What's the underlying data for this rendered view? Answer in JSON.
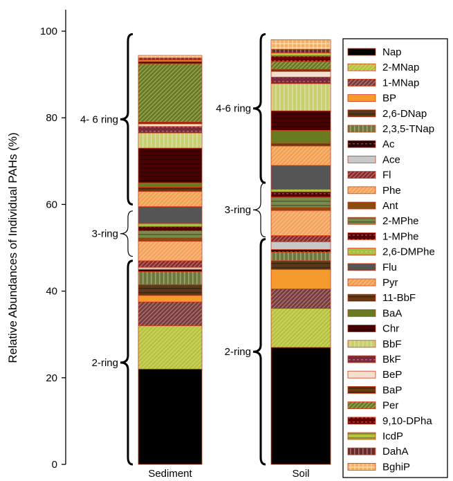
{
  "chart_data": {
    "type": "stacked-bar",
    "ylabel": "Relative Abundances of Individual PAHs (%)",
    "ylim": [
      0,
      100
    ],
    "yticks": [
      0,
      20,
      40,
      60,
      80,
      100
    ],
    "categories": [
      "Sediment",
      "Soil"
    ],
    "series": [
      {
        "name": "Nap",
        "color": "#000000",
        "pattern": "solid",
        "values": [
          22,
          27
        ]
      },
      {
        "name": "2-MNap",
        "color": "#b5c23a",
        "pattern": "diag",
        "values": [
          10,
          9
        ]
      },
      {
        "name": "1-MNap",
        "color": "#7a3b3b",
        "pattern": "diag",
        "values": [
          5.5,
          4.5
        ]
      },
      {
        "name": "BP",
        "color": "#f59a2c",
        "pattern": "solid",
        "values": [
          1.5,
          4.5
        ]
      },
      {
        "name": "2,6-DNap",
        "color": "#5a3a1a",
        "pattern": "hstripe",
        "values": [
          2.5,
          2
        ]
      },
      {
        "name": "2,3,5-TNap",
        "color": "#6f7a3a",
        "pattern": "vstripe",
        "values": [
          3,
          2
        ]
      },
      {
        "name": "Ac",
        "color": "#2a0000",
        "pattern": "dash",
        "values": [
          0.5,
          0.6
        ]
      },
      {
        "name": "Ace",
        "color": "#c8c8c8",
        "pattern": "solid",
        "values": [
          0.5,
          1.8
        ]
      },
      {
        "name": "Fl",
        "color": "#8a2a2a",
        "pattern": "diag",
        "values": [
          1.5,
          1.4
        ]
      },
      {
        "name": "Phe",
        "color": "#f5a35c",
        "pattern": "diag",
        "values": [
          4.5,
          5.8
        ]
      },
      {
        "name": "Ant",
        "color": "#8a4a10",
        "pattern": "solid",
        "values": [
          0.8,
          0.7
        ]
      },
      {
        "name": "2-MPhe",
        "color": "#7a8a4a",
        "pattern": "hstripe",
        "values": [
          1.6,
          2.4
        ]
      },
      {
        "name": "1-MPhe",
        "color": "#550000",
        "pattern": "dash",
        "values": [
          1,
          1.2
        ]
      },
      {
        "name": "2,6-DMPhe",
        "color": "#a8c040",
        "pattern": "dash",
        "values": [
          0.7,
          0.6
        ]
      },
      {
        "name": "Flu",
        "color": "#555555",
        "pattern": "solid",
        "values": [
          3.9,
          5.5
        ]
      },
      {
        "name": "Pyr",
        "color": "#f0a050",
        "pattern": "diag",
        "values": [
          3.5,
          4.5
        ]
      },
      {
        "name": "11-BbF",
        "color": "#6a3a10",
        "pattern": "hstripe",
        "values": [
          1,
          0.6
        ]
      },
      {
        "name": "BaA",
        "color": "#6a7a20",
        "pattern": "solid",
        "values": [
          1,
          3
        ]
      },
      {
        "name": "Chr",
        "color": "#4a0000",
        "pattern": "hstripe",
        "values": [
          8,
          4.5
        ]
      },
      {
        "name": "BbF",
        "color": "#c8d070",
        "pattern": "vstripe",
        "values": [
          3.5,
          6.3
        ]
      },
      {
        "name": "BkF",
        "color": "#7a2a3a",
        "pattern": "dash",
        "values": [
          1.5,
          1.5
        ]
      },
      {
        "name": "BeP",
        "color": "#f5e0d0",
        "pattern": "solid",
        "values": [
          0.6,
          1.3
        ]
      },
      {
        "name": "BaP",
        "color": "#6a3a10",
        "pattern": "hstripe",
        "values": [
          0.4,
          0.5
        ]
      },
      {
        "name": "Per",
        "color": "#6a7a20",
        "pattern": "diag",
        "values": [
          13.5,
          1.8
        ]
      },
      {
        "name": "9,10-DPha",
        "color": "#6a0000",
        "pattern": "dash",
        "values": [
          0.5,
          1.2
        ]
      },
      {
        "name": "IcdP",
        "color": "#b5c23a",
        "pattern": "hstripe",
        "values": [
          0.4,
          0.8
        ]
      },
      {
        "name": "DahA",
        "color": "#6a2a2a",
        "pattern": "vstripe",
        "values": [
          0.4,
          0.8
        ]
      },
      {
        "name": "BghiP",
        "color": "#f5b060",
        "pattern": "grid",
        "values": [
          0.6,
          2.2
        ]
      }
    ],
    "annotations": [
      {
        "category": "Sediment",
        "label": "4- 6 ring",
        "from": 60,
        "to": 99.3
      },
      {
        "category": "Sediment",
        "label": "3-ring",
        "from": 48,
        "to": 58.5
      },
      {
        "category": "Sediment",
        "label": "2-ring",
        "from": 0,
        "to": 47
      },
      {
        "category": "Soil",
        "label": "4-6 ring",
        "from": 65,
        "to": 99.3
      },
      {
        "category": "Soil",
        "label": "3-ring",
        "from": 52.5,
        "to": 65
      },
      {
        "category": "Soil",
        "label": "2-ring",
        "from": 0,
        "to": 52
      }
    ],
    "legend_position": "right"
  }
}
